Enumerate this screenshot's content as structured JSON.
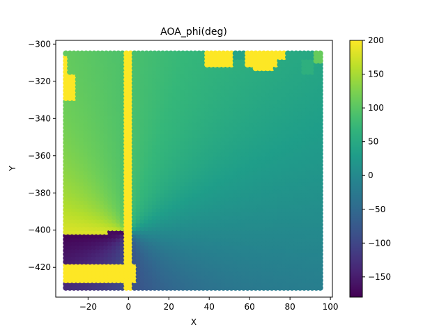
{
  "chart_data": {
    "type": "heatmap",
    "title": "AOA_phi(deg)",
    "xlabel": "X",
    "ylabel": "Y",
    "xlim": [
      -36,
      101
    ],
    "ylim": [
      -436,
      -298
    ],
    "xticks": [
      -20,
      0,
      20,
      40,
      60,
      80,
      100
    ],
    "yticks": [
      -300,
      -320,
      -340,
      -360,
      -380,
      -400,
      -420
    ],
    "xtick_labels": [
      "−20",
      "0",
      "20",
      "40",
      "60",
      "80",
      "100"
    ],
    "ytick_labels": [
      "−300",
      "−320",
      "−340",
      "−360",
      "−380",
      "−400",
      "−420"
    ],
    "colorbar": {
      "colormap": "viridis",
      "range": [
        -180,
        200
      ],
      "ticks": [
        200,
        150,
        100,
        50,
        0,
        -50,
        -100,
        -150
      ],
      "tick_labels": [
        "200",
        "150",
        "100",
        "50",
        "0",
        "−50",
        "−100",
        "−150"
      ]
    },
    "grid": {
      "x_range": [
        -31,
        96
      ],
      "y_range": [
        -431,
        -304
      ],
      "step": 2,
      "marker": "circle"
    },
    "field": {
      "description_values": "phi = atan2(dy, dx) in degrees relative to origin (0, -401); outside regions saturate at 200",
      "origin": [
        0,
        -401
      ],
      "saturated_value": 200
    },
    "grid_on": false
  }
}
